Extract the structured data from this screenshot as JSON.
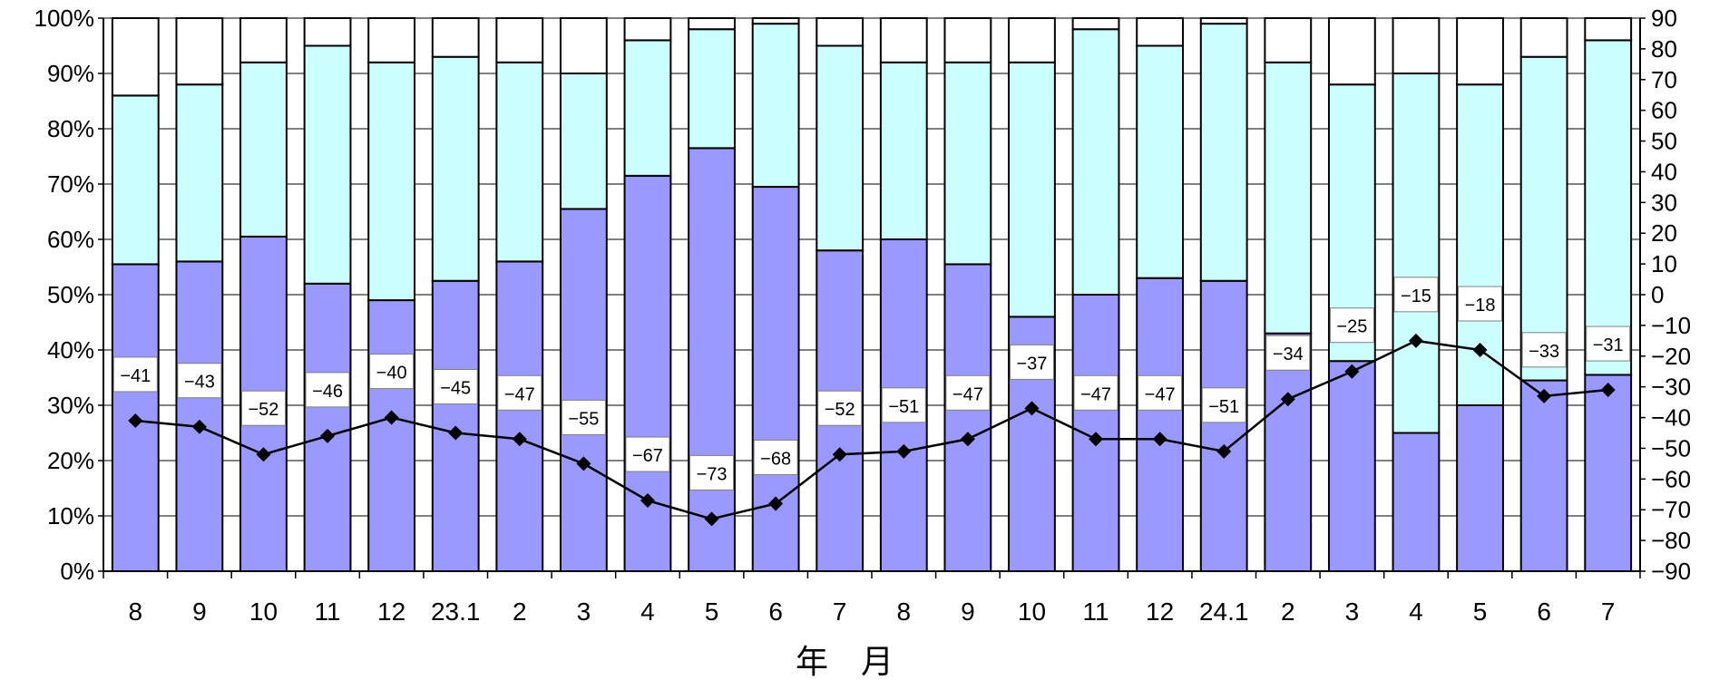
{
  "chart_data": {
    "type": "bar",
    "stacked": true,
    "stack_mode": "percent",
    "categories": [
      "8",
      "9",
      "10",
      "11",
      "12",
      "23.1",
      "2",
      "3",
      "4",
      "5",
      "6",
      "7",
      "8",
      "9",
      "10",
      "11",
      "12",
      "24.1",
      "2",
      "3",
      "4",
      "5",
      "6",
      "7"
    ],
    "series": [
      {
        "color": "#9999ff",
        "values": [
          55.5,
          56,
          60.5,
          52,
          49,
          52.5,
          56,
          65.5,
          71.5,
          76.5,
          69.5,
          58,
          60,
          55.5,
          46,
          50,
          53,
          52.5,
          43,
          38,
          25,
          30,
          34.5,
          35.5
        ]
      },
      {
        "color": "#ccffff",
        "values": [
          30.5,
          32,
          31.5,
          43,
          43,
          40.5,
          36,
          24.5,
          24.5,
          21.5,
          29.5,
          37,
          32,
          36.5,
          46,
          48,
          42,
          46.5,
          49,
          50,
          65,
          58,
          58.5,
          60.5
        ]
      },
      {
        "color": "#ffffff",
        "values": [
          14,
          12,
          8,
          5,
          8,
          7,
          8,
          10,
          4,
          2,
          1,
          5,
          8,
          8,
          8,
          2,
          5,
          1,
          8,
          12,
          10,
          12,
          7,
          4
        ]
      },
      {
        "type": "line",
        "axis": "right",
        "color": "#000000",
        "marker": "diamond",
        "values": [
          -41,
          -43,
          -52,
          -46,
          -40,
          -45,
          -47,
          -55,
          -67,
          -73,
          -68,
          -52,
          -51,
          -47,
          -37,
          -47,
          -47,
          -51,
          -34,
          -25,
          -15,
          -18,
          -33,
          -31
        ],
        "labels": [
          "−41",
          "−43",
          "−52",
          "−46",
          "−40",
          "−45",
          "−47",
          "−55",
          "−67",
          "−73",
          "−68",
          "−52",
          "−51",
          "−47",
          "−37",
          "−47",
          "−47",
          "−51",
          "−34",
          "−25",
          "−15",
          "−18",
          "−33",
          "−31"
        ]
      }
    ],
    "xlabel": "年　月",
    "ylim": [
      0,
      100
    ],
    "y_ticks": [
      "0%",
      "10%",
      "20%",
      "30%",
      "40%",
      "50%",
      "60%",
      "70%",
      "80%",
      "90%",
      "100%"
    ],
    "y2lim": [
      -90,
      90
    ],
    "y2_ticks": [
      "90",
      "80",
      "70",
      "60",
      "50",
      "40",
      "30",
      "20",
      "10",
      "0",
      "−10",
      "−20",
      "−30",
      "−40",
      "−50",
      "−60",
      "−70",
      "−80",
      "−90"
    ],
    "grid": true,
    "legend": "none"
  }
}
